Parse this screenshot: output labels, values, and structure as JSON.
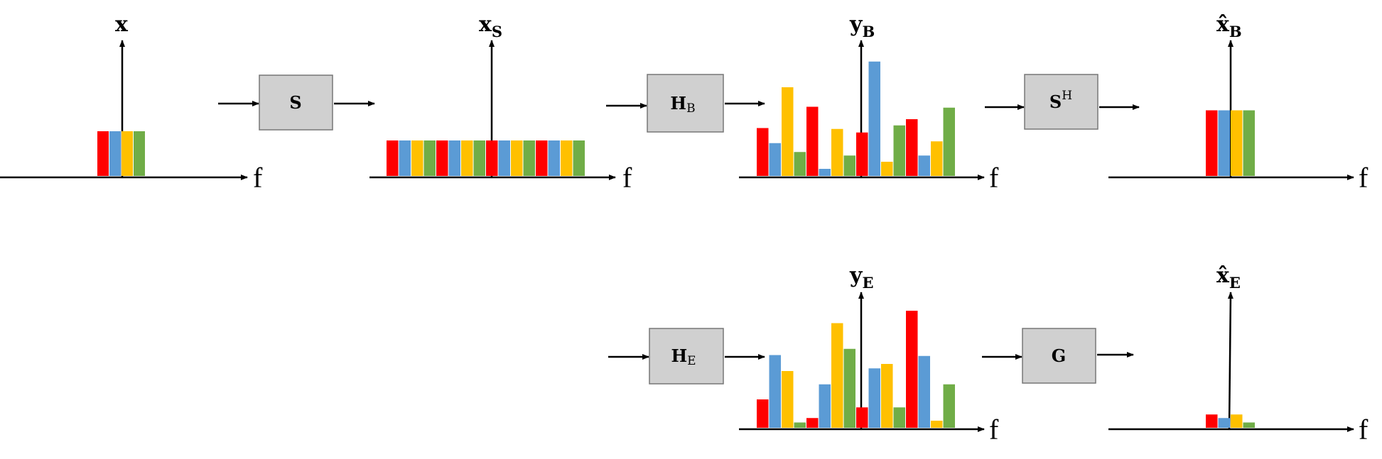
{
  "colors": {
    "red": "#ff0000",
    "blue": "#5b9bd5",
    "yellow": "#ffc000",
    "green": "#70ad47"
  },
  "axis_label": "f",
  "signals": {
    "x": {
      "base": "x",
      "sub": ""
    },
    "xs": {
      "base": "x",
      "sub": "S"
    },
    "yb": {
      "base": "y",
      "sub": "B"
    },
    "xhb": {
      "base": "x̂",
      "sub": "B"
    },
    "ye": {
      "base": "y",
      "sub": "E"
    },
    "xhe": {
      "base": "x̂",
      "sub": "E"
    }
  },
  "blocks": {
    "s": {
      "base": "S",
      "sup": "",
      "sub": ""
    },
    "hb": {
      "base": "H",
      "sup": "",
      "sub": "B"
    },
    "sh": {
      "base": "S",
      "sup": "H",
      "sub": ""
    },
    "he": {
      "base": "H",
      "sup": "",
      "sub": "E"
    },
    "g": {
      "base": "G",
      "sup": "",
      "sub": ""
    }
  },
  "spectra": {
    "x": {
      "heights": [
        0.63,
        0.63,
        0.63,
        0.63
      ]
    },
    "xs": {
      "heights": [
        0.4,
        0.4,
        0.4,
        0.4,
        0.4,
        0.4,
        0.4,
        0.4,
        0.4,
        0.4,
        0.4,
        0.4,
        0.4,
        0.4,
        0.4,
        0.4
      ]
    },
    "yb": {
      "heights": [
        0.54,
        0.37,
        1.0,
        0.27,
        0.78,
        0.08,
        0.53,
        0.23,
        0.49,
        1.29,
        0.16,
        0.57,
        0.64,
        0.23,
        0.39,
        0.77
      ]
    },
    "xhb": {
      "heights": [
        0.74,
        0.74,
        0.74,
        0.74
      ]
    },
    "ye": {
      "heights": [
        0.32,
        0.82,
        0.64,
        0.06,
        0.11,
        0.49,
        1.18,
        0.89,
        0.23,
        0.67,
        0.72,
        0.23,
        1.32,
        0.81,
        0.08,
        0.49
      ]
    },
    "xhe": {
      "heights": [
        0.15,
        0.11,
        0.15,
        0.06
      ]
    }
  }
}
